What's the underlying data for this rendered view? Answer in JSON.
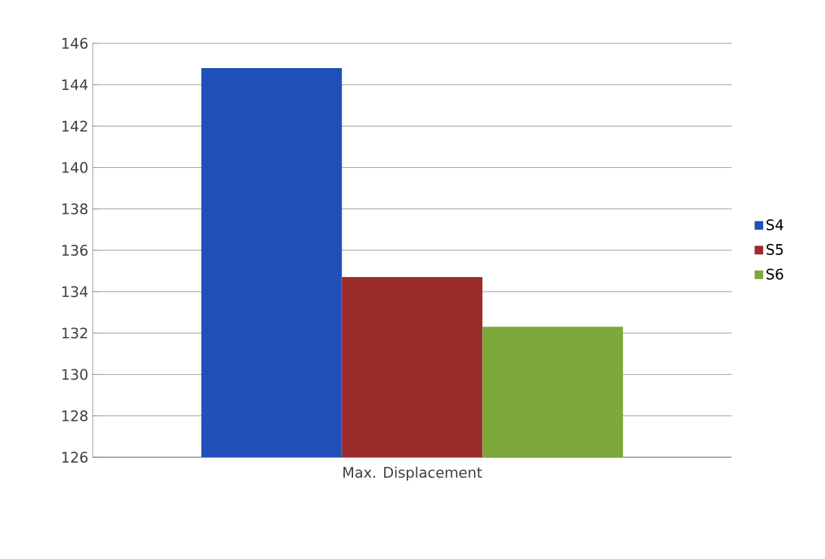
{
  "chart_data": {
    "type": "bar",
    "categories": [
      "Max. Displacement"
    ],
    "series": [
      {
        "name": "S4",
        "color": "#2050b8",
        "values": [
          144.8
        ]
      },
      {
        "name": "S5",
        "color": "#9a2c2c",
        "values": [
          134.7
        ]
      },
      {
        "name": "S6",
        "color": "#7ca83c",
        "values": [
          132.3
        ]
      }
    ],
    "ylim": [
      126,
      146
    ],
    "yticks": [
      126,
      128,
      130,
      132,
      134,
      136,
      138,
      140,
      142,
      144,
      146
    ],
    "grid": "y",
    "legend": "right"
  }
}
